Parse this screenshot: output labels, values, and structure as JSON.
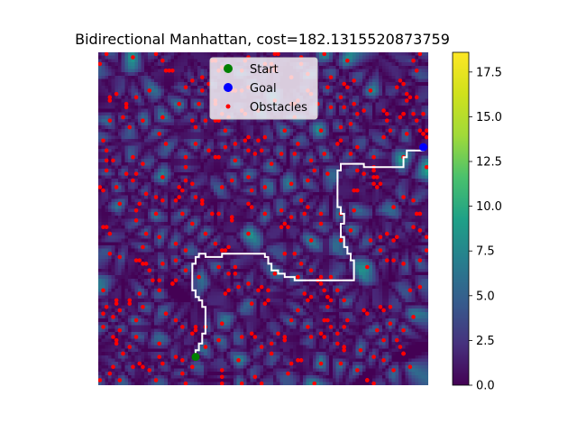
{
  "chart_data": {
    "type": "heatmap",
    "title": "Bidirectional Manhattan, cost=182.1315520873759",
    "xlabel": "",
    "ylabel": "",
    "colormap": "viridis",
    "colorbar": {
      "range": [
        0.0,
        18.6
      ],
      "ticks": [
        0.0,
        2.5,
        5.0,
        7.5,
        10.0,
        12.5,
        15.0,
        17.5
      ],
      "tick_labels": [
        "0.0",
        "2.5",
        "5.0",
        "7.5",
        "10.0",
        "12.5",
        "15.0",
        "17.5"
      ]
    },
    "grid_size": [
      100,
      100
    ],
    "axes_visible": false,
    "legend": {
      "position": "upper-center",
      "entries": [
        {
          "label": "Start",
          "color": "#008000",
          "marker": "circle"
        },
        {
          "label": "Goal",
          "color": "#0000ff",
          "marker": "circle"
        },
        {
          "label": "Obstacles",
          "color": "#ff0000",
          "marker": "small-circle"
        }
      ]
    },
    "start": {
      "x": 29,
      "y": 91
    },
    "goal": {
      "x": 98,
      "y": 28
    },
    "path": [
      [
        29,
        91
      ],
      [
        29,
        89
      ],
      [
        30,
        89
      ],
      [
        30,
        87
      ],
      [
        31,
        87
      ],
      [
        31,
        84
      ],
      [
        32,
        84
      ],
      [
        32,
        76
      ],
      [
        31,
        76
      ],
      [
        31,
        74
      ],
      [
        30,
        74
      ],
      [
        30,
        73
      ],
      [
        29,
        73
      ],
      [
        29,
        71
      ],
      [
        28,
        71
      ],
      [
        28,
        63
      ],
      [
        29,
        63
      ],
      [
        29,
        61
      ],
      [
        30,
        61
      ],
      [
        30,
        60
      ],
      [
        32,
        60
      ],
      [
        32,
        61
      ],
      [
        37,
        61
      ],
      [
        37,
        60
      ],
      [
        50,
        60
      ],
      [
        50,
        61
      ],
      [
        51,
        61
      ],
      [
        51,
        63
      ],
      [
        52,
        63
      ],
      [
        52,
        65
      ],
      [
        54,
        65
      ],
      [
        54,
        66
      ],
      [
        56,
        66
      ],
      [
        56,
        67
      ],
      [
        59,
        67
      ],
      [
        59,
        68
      ],
      [
        77,
        68
      ],
      [
        77,
        62
      ],
      [
        76,
        62
      ],
      [
        76,
        60
      ],
      [
        75,
        60
      ],
      [
        75,
        58
      ],
      [
        74,
        58
      ],
      [
        74,
        55
      ],
      [
        73,
        55
      ],
      [
        73,
        51
      ],
      [
        74,
        51
      ],
      [
        74,
        48
      ],
      [
        73,
        48
      ],
      [
        73,
        46
      ],
      [
        72,
        46
      ],
      [
        72,
        35
      ],
      [
        73,
        35
      ],
      [
        73,
        33
      ],
      [
        80,
        33
      ],
      [
        80,
        34
      ],
      [
        92,
        34
      ],
      [
        92,
        31
      ],
      [
        93,
        31
      ],
      [
        93,
        29
      ],
      [
        98,
        29
      ],
      [
        98,
        28
      ]
    ],
    "obstacle_count": 420,
    "obstacle_seed": 7
  }
}
